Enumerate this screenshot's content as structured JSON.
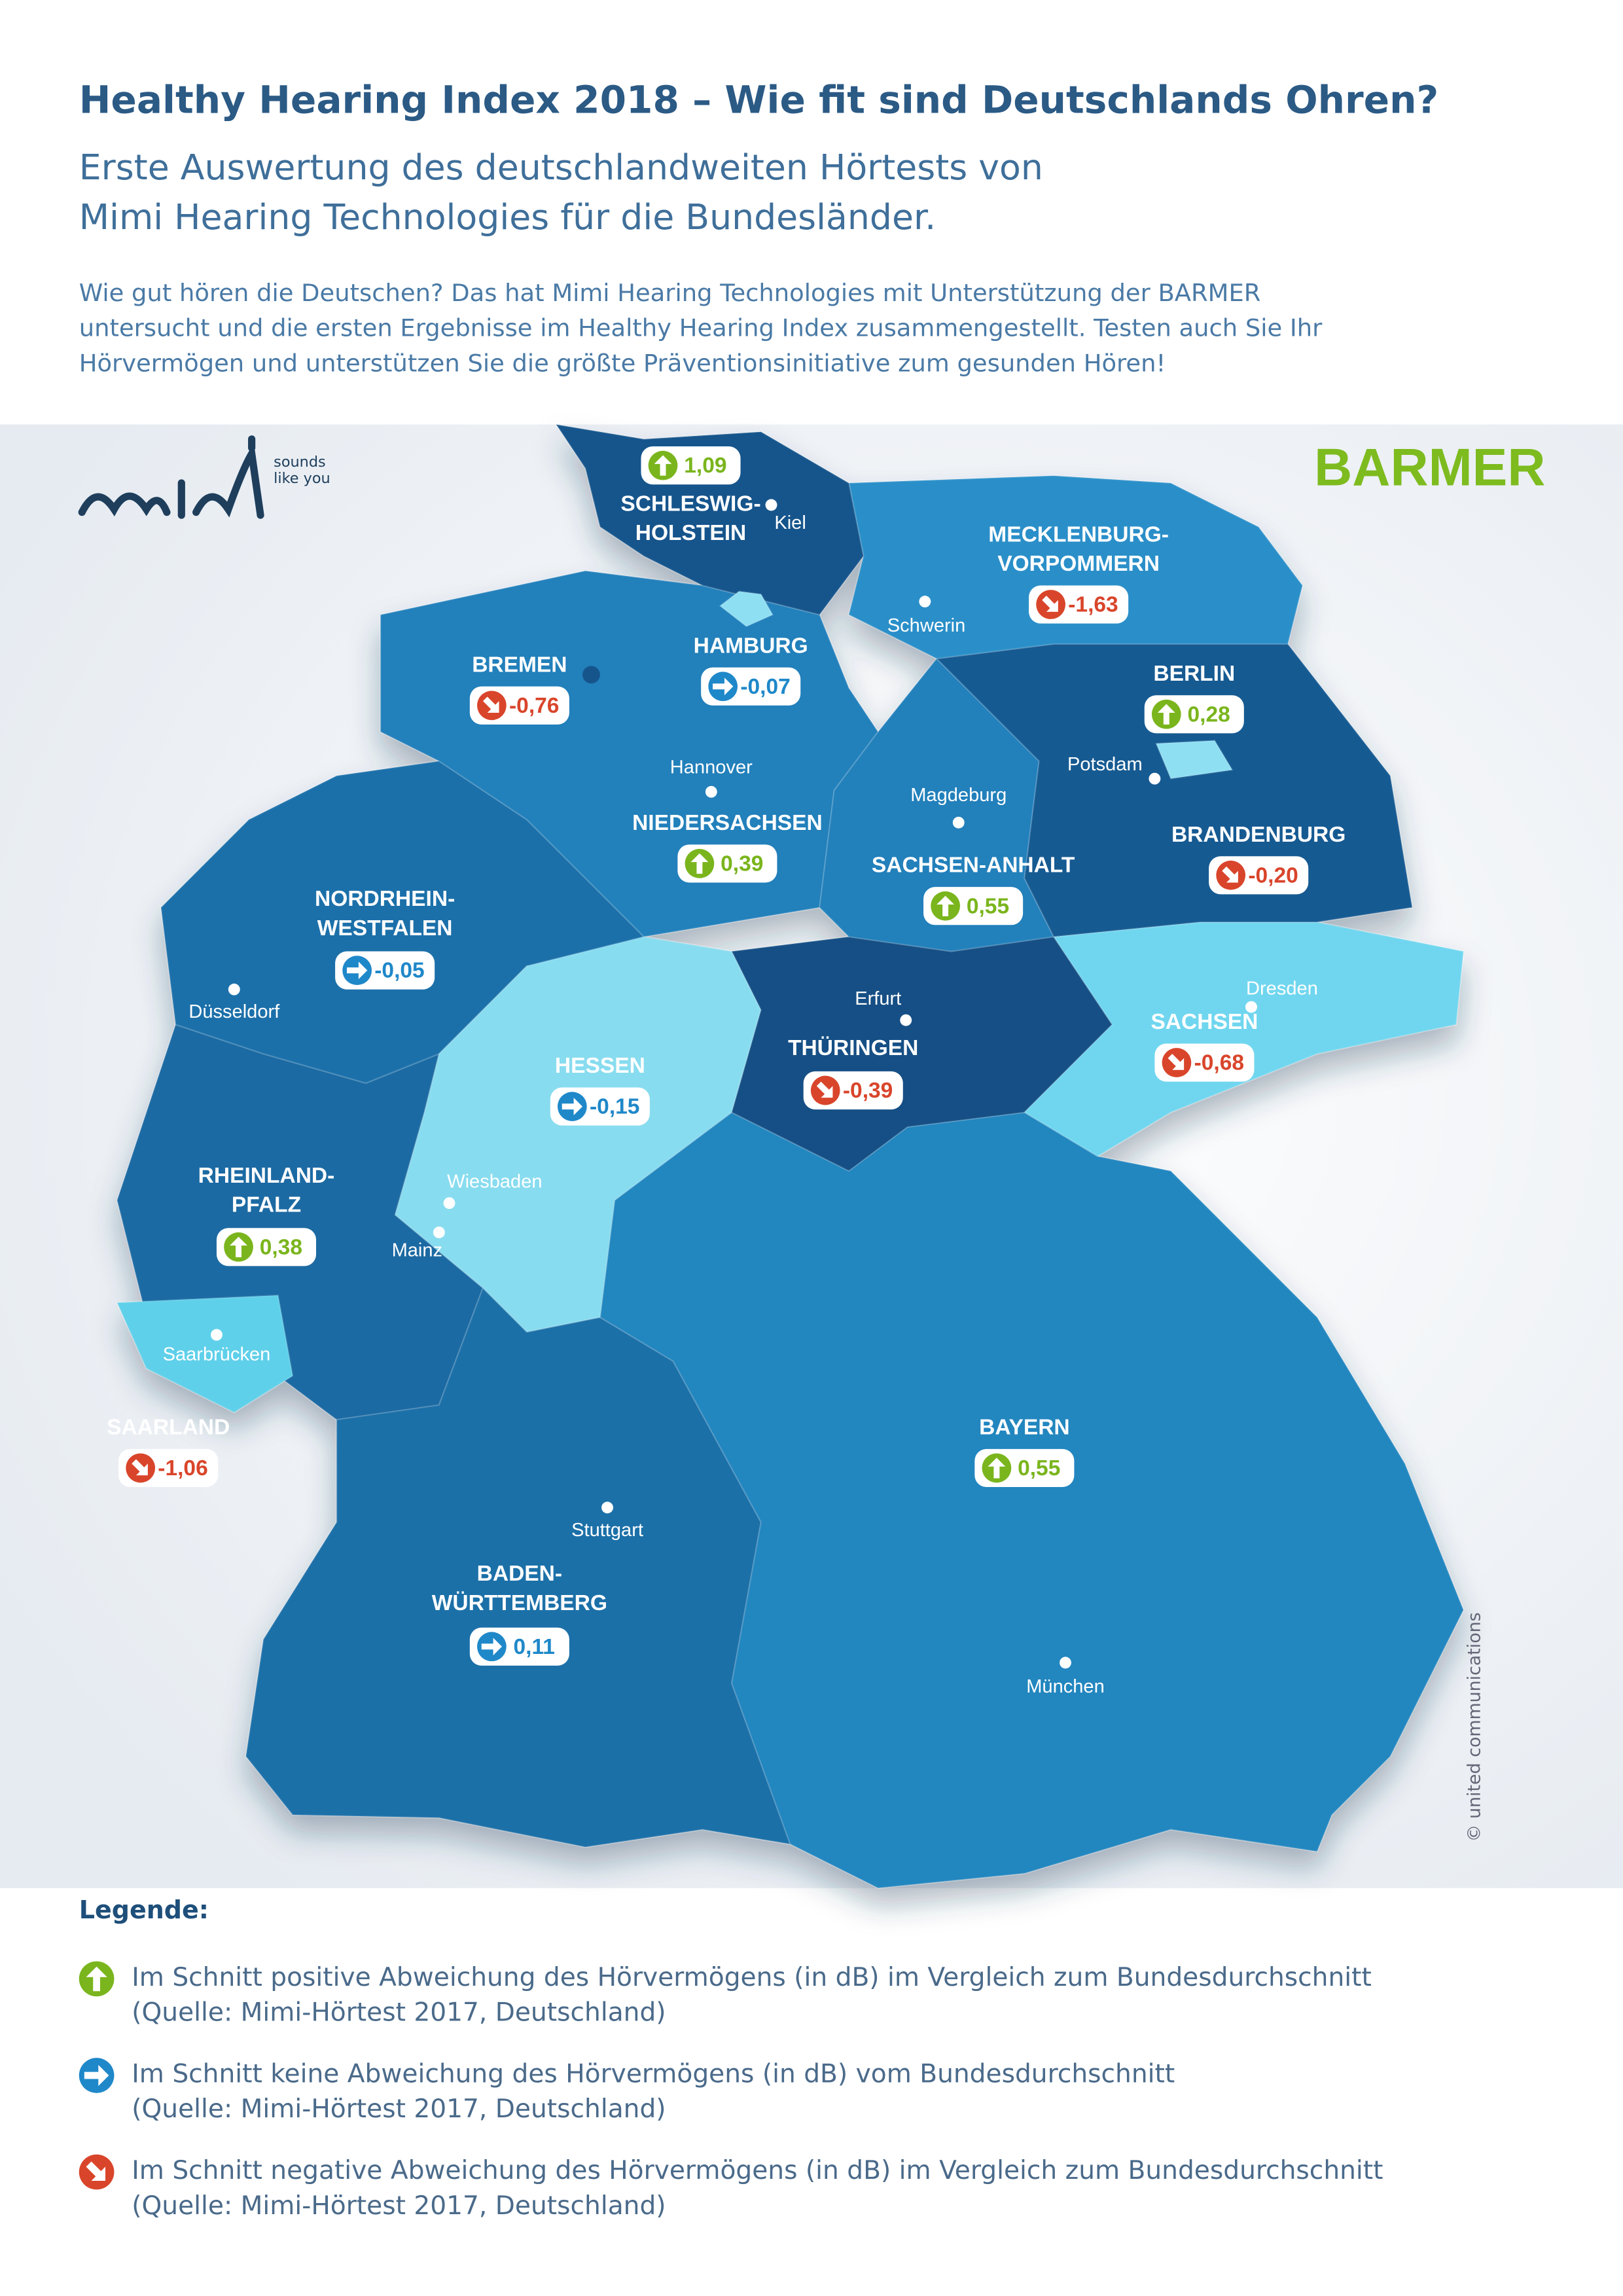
{
  "header": {
    "title": "Healthy Hearing Index 2018 – Wie fit sind Deutschlands Ohren?",
    "subtitle": [
      "Erste Auswertung des deutschlandweiten Hörtests von",
      "Mimi Hearing Technologies für die Bundesländer."
    ],
    "intro": [
      "Wie gut hören die Deutschen? Das hat Mimi Hearing Technologies mit Unterstützung der BARMER",
      "untersucht und die ersten Ergebnisse im Healthy Hearing Index zusammengestellt. Testen auch Sie Ihr",
      "Hörvermögen und unterstützen Sie die größte Präventionsinitiative zum gesunden Hören!"
    ]
  },
  "logos": {
    "mimi": "mimi",
    "mimi_tagline": [
      "sounds",
      "like you"
    ],
    "barmer": "BARMER"
  },
  "states": [
    {
      "name": [
        "SCHLESWIG-",
        "HOLSTEIN"
      ],
      "value": "1,09",
      "icon": "up"
    },
    {
      "name": [
        "HAMBURG"
      ],
      "value": "-0,07",
      "icon": "right"
    },
    {
      "name": [
        "BREMEN"
      ],
      "value": "-0,76",
      "icon": "down"
    },
    {
      "name": [
        "MECKLENBURG-",
        "VORPOMMERN"
      ],
      "value": "-1,63",
      "icon": "down"
    },
    {
      "name": [
        "BERLIN"
      ],
      "value": "0,28",
      "icon": "up"
    },
    {
      "name": [
        "BRANDENBURG"
      ],
      "value": "-0,20",
      "icon": "down"
    },
    {
      "name": [
        "NIEDERSACHSEN"
      ],
      "value": "0,39",
      "icon": "up"
    },
    {
      "name": [
        "SACHSEN-ANHALT"
      ],
      "value": "0,55",
      "icon": "up"
    },
    {
      "name": [
        "NORDRHEIN-",
        "WESTFALEN"
      ],
      "value": "-0,05",
      "icon": "right"
    },
    {
      "name": [
        "HESSEN"
      ],
      "value": "-0,15",
      "icon": "right"
    },
    {
      "name": [
        "THÜRINGEN"
      ],
      "value": "-0,39",
      "icon": "down"
    },
    {
      "name": [
        "SACHSEN"
      ],
      "value": "-0,68",
      "icon": "down"
    },
    {
      "name": [
        "RHEINLAND-",
        "PFALZ"
      ],
      "value": "0,38",
      "icon": "up"
    },
    {
      "name": [
        "SAARLAND"
      ],
      "value": "-1,06",
      "icon": "down"
    },
    {
      "name": [
        "BAYERN"
      ],
      "value": "0,55",
      "icon": "up"
    },
    {
      "name": [
        "BADEN-",
        "WÜRTTEMBERG"
      ],
      "value": "0,11",
      "icon": "right"
    }
  ],
  "cities": [
    "Kiel",
    "Schwerin",
    "Hannover",
    "Magdeburg",
    "Potsdam",
    "Düsseldorf",
    "Erfurt",
    "Dresden",
    "Wiesbaden",
    "Mainz",
    "Saarbrücken",
    "Stuttgart",
    "München"
  ],
  "legend": {
    "title": "Legende:",
    "items": [
      {
        "icon": "up",
        "lines": [
          "Im Schnitt positive Abweichung des Hörvermögens (in dB) im Vergleich zum Bundesdurchschnitt",
          "(Quelle: Mimi-Hörtest 2017, Deutschland)"
        ]
      },
      {
        "icon": "right",
        "lines": [
          "Im Schnitt keine Abweichung des Hörvermögens (in dB) vom Bundesdurchschnitt",
          "(Quelle: Mimi-Hörtest 2017, Deutschland)"
        ]
      },
      {
        "icon": "down",
        "lines": [
          "Im Schnitt negative Abweichung des Hörvermögens (in dB) im Vergleich zum Bundesdurchschnitt",
          "(Quelle: Mimi-Hörtest 2017, Deutschland)"
        ]
      }
    ]
  },
  "credit": "© united communications"
}
